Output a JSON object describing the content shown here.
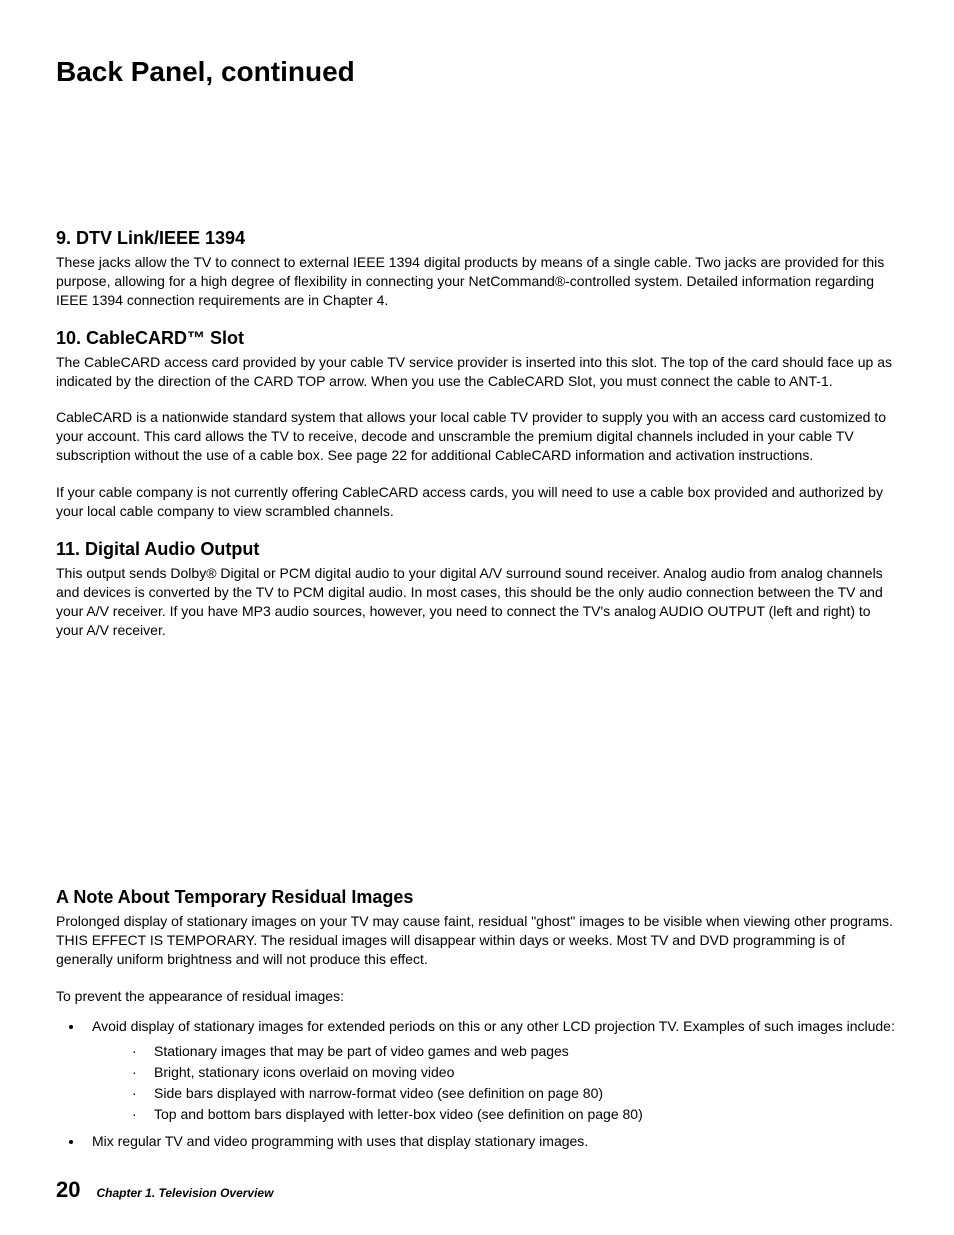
{
  "title": "Back Panel, continued",
  "sections": {
    "s9": {
      "heading": "9. DTV Link/IEEE 1394",
      "p1": "These jacks allow the TV to connect to external IEEE 1394 digital products by means of a single cable.  Two jacks are provided for this purpose, allowing for a high degree of flexibility in connecting your NetCommand®-controlled system.  Detailed information regarding IEEE 1394 connection requirements are in Chapter 4."
    },
    "s10": {
      "heading": "10.  CableCARD™ Slot",
      "p1": "The CableCARD access card provided by your cable TV service provider is inserted into this slot.  The top of the card should face up as indicated by the direction of the CARD TOP arrow.  When you use the CableCARD Slot, you must connect the cable to ANT-1.",
      "p2": "CableCARD is a nationwide standard system that allows your local cable TV provider to supply you with an access card customized to your account.  This card allows the TV to receive, decode and unscramble the premium digital channels included in your cable TV subscription without the use of a cable box.  See page 22 for additional CableCARD information and activation instructions.",
      "p3": "If your cable company is not currently offering CableCARD access cards, you will need to use a cable box provided and authorized by your local cable company to view scrambled channels."
    },
    "s11": {
      "heading": "11. Digital Audio Output",
      "p1": "This output sends Dolby® Digital or PCM digital audio to your digital A/V surround sound receiver.  Analog audio from analog channels and devices is converted by the TV to PCM digital audio.  In most cases, this should be the only audio connection between the TV and your A/V receiver.  If you have MP3 audio sources, however, you need to connect the TV's analog AUDIO OUTPUT (left and right) to your A/V receiver."
    },
    "note": {
      "heading": "A Note About Temporary Residual Images",
      "p1": "Prolonged display of stationary images on your TV may cause faint, residual \"ghost\" images to be visible when viewing other programs.  THIS EFFECT IS TEMPORARY.  The residual images will disappear within days or weeks.  Most TV and DVD programming is of generally uniform brightness and will not produce this effect.",
      "p2": "To prevent the appearance of residual images:",
      "b1": "Avoid display of stationary images for extended periods on this or any other LCD projection TV.  Examples of such images include:",
      "sub1": "Stationary images that may be part of video games and web pages",
      "sub2": "Bright, stationary icons overlaid on moving video",
      "sub3": "Side bars displayed with narrow-format video (see definition on page 80)",
      "sub4": "Top and bottom bars displayed with letter-box video (see definition on page 80)",
      "b2": "Mix regular TV and video programming with uses that display stationary images."
    }
  },
  "footer": {
    "page": "20",
    "chapter": "Chapter 1. Television Overview"
  }
}
